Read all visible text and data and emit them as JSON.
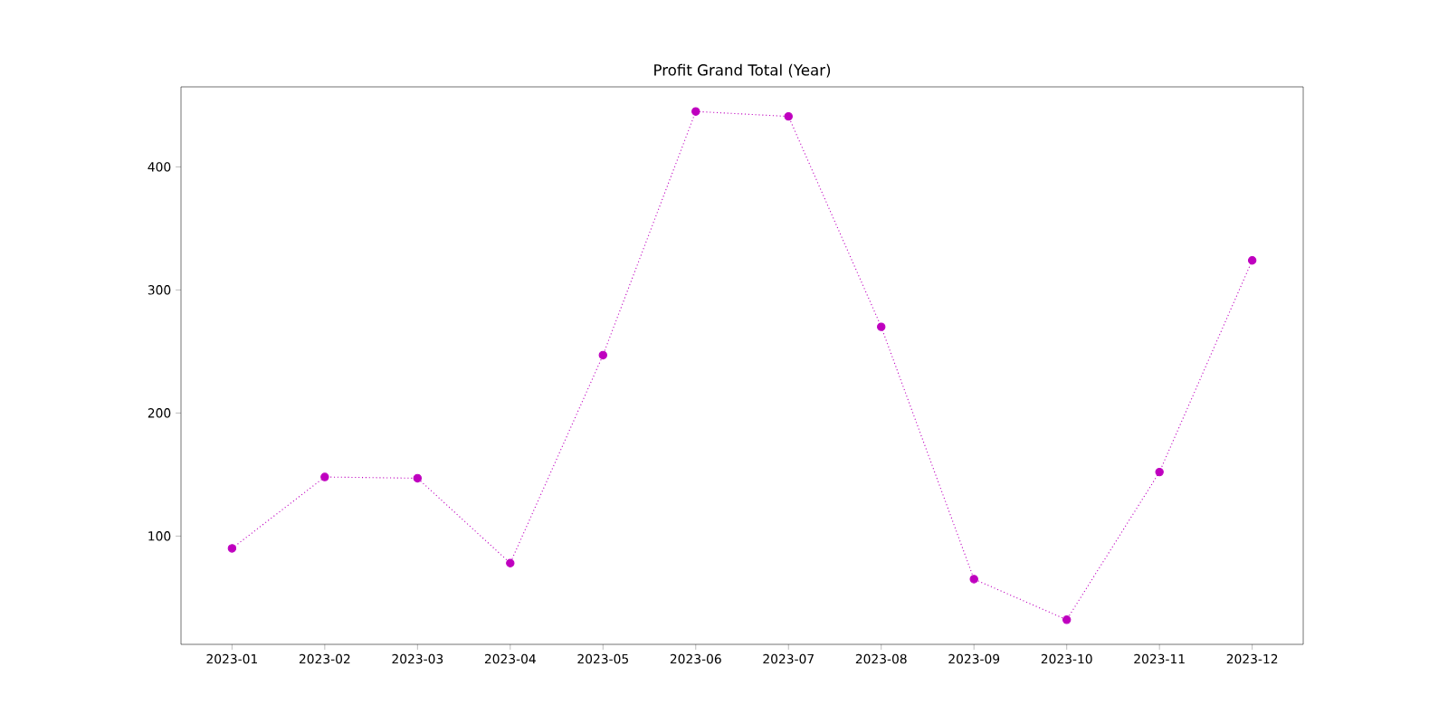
{
  "chart_data": {
    "type": "line",
    "title": "Profit Grand Total (Year)",
    "categories": [
      "2023-01",
      "2023-02",
      "2023-03",
      "2023-04",
      "2023-05",
      "2023-06",
      "2023-07",
      "2023-08",
      "2023-09",
      "2023-10",
      "2023-11",
      "2023-12"
    ],
    "values": [
      90,
      148,
      147,
      78,
      247,
      445,
      441,
      270,
      65,
      32,
      152,
      324
    ],
    "color": "#bf00bf",
    "marker": "circle",
    "line_style": "dotted",
    "ylim": [
      12,
      465
    ],
    "yticks": [
      100,
      200,
      300,
      400
    ]
  }
}
